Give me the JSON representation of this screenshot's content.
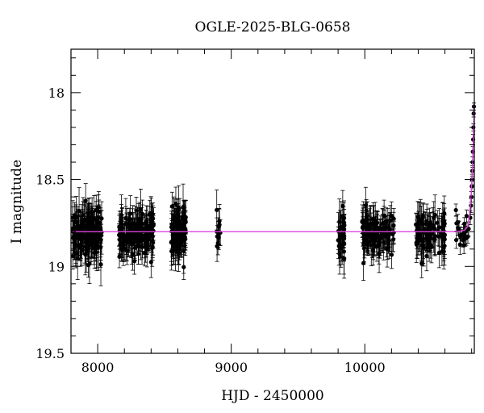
{
  "chart_data": {
    "type": "scatter",
    "title": "OGLE-2025-BLG-0658",
    "xlabel": "HJD - 2450000",
    "ylabel": "I magnitude",
    "xlim": [
      7800,
      10820
    ],
    "ylim": [
      19.5,
      17.75
    ],
    "y_inverted": true,
    "x_ticks": [
      8000,
      9000,
      10000
    ],
    "x_tick_labels": [
      "8000",
      "9000",
      "10000"
    ],
    "y_ticks": [
      18,
      18.5,
      19,
      19.5
    ],
    "y_tick_labels": [
      "18",
      "18.5",
      "19",
      "19.5"
    ],
    "grid": false,
    "colors": {
      "points": "#000000",
      "model": "#e040e0",
      "frame": "#000000"
    },
    "observing_seasons": [
      {
        "start": 7810,
        "end": 8030,
        "mag": 18.8,
        "scatter": 0.07,
        "err": 0.09,
        "n": 140
      },
      {
        "start": 8160,
        "end": 8420,
        "mag": 18.8,
        "scatter": 0.06,
        "err": 0.08,
        "n": 150
      },
      {
        "start": 8550,
        "end": 8660,
        "mag": 18.8,
        "scatter": 0.07,
        "err": 0.09,
        "n": 90
      },
      {
        "start": 8890,
        "end": 8920,
        "mag": 18.78,
        "scatter": 0.06,
        "err": 0.08,
        "n": 12
      },
      {
        "start": 9800,
        "end": 9850,
        "mag": 18.82,
        "scatter": 0.07,
        "err": 0.09,
        "n": 35
      },
      {
        "start": 9980,
        "end": 10220,
        "mag": 18.8,
        "scatter": 0.06,
        "err": 0.08,
        "n": 110
      },
      {
        "start": 10380,
        "end": 10600,
        "mag": 18.8,
        "scatter": 0.06,
        "err": 0.08,
        "n": 90
      },
      {
        "start": 10680,
        "end": 10790,
        "mag": 18.8,
        "scatter": 0.04,
        "err": 0.04,
        "n": 25
      }
    ],
    "rising_points": [
      {
        "x": 10790,
        "y": 18.72,
        "err": 0.04
      },
      {
        "x": 10795,
        "y": 18.65,
        "err": 0.04
      },
      {
        "x": 10798,
        "y": 18.6,
        "err": 0.03
      },
      {
        "x": 10801,
        "y": 18.54,
        "err": 0.03
      },
      {
        "x": 10803,
        "y": 18.5,
        "err": 0.03
      },
      {
        "x": 10805,
        "y": 18.45,
        "err": 0.03
      },
      {
        "x": 10807,
        "y": 18.4,
        "err": 0.03
      },
      {
        "x": 10809,
        "y": 18.34,
        "err": 0.03
      },
      {
        "x": 10811,
        "y": 18.27,
        "err": 0.03
      },
      {
        "x": 10813,
        "y": 18.2,
        "err": 0.02
      },
      {
        "x": 10815,
        "y": 18.12,
        "err": 0.02
      },
      {
        "x": 10817,
        "y": 18.08,
        "err": 0.02
      }
    ],
    "model": {
      "baseline": 18.8,
      "x": [
        7800,
        10600,
        10700,
        10750,
        10770,
        10785,
        10795,
        10805,
        10812,
        10818,
        10822
      ],
      "y": [
        18.8,
        18.8,
        18.8,
        18.79,
        18.77,
        18.7,
        18.6,
        18.45,
        18.3,
        18.12,
        18.05
      ]
    }
  }
}
